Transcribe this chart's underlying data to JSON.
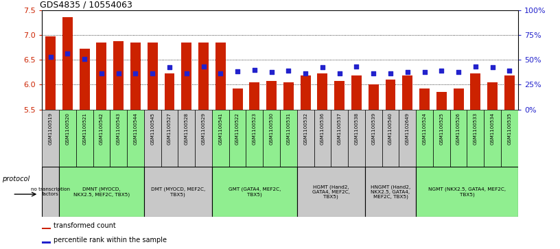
{
  "title": "GDS4835 / 10554063",
  "samples": [
    "GSM1100519",
    "GSM1100520",
    "GSM1100521",
    "GSM1100542",
    "GSM1100543",
    "GSM1100544",
    "GSM1100545",
    "GSM1100527",
    "GSM1100528",
    "GSM1100529",
    "GSM1100541",
    "GSM1100522",
    "GSM1100523",
    "GSM1100530",
    "GSM1100531",
    "GSM1100532",
    "GSM1100536",
    "GSM1100537",
    "GSM1100538",
    "GSM1100539",
    "GSM1100540",
    "GSM1102649",
    "GSM1100524",
    "GSM1100525",
    "GSM1100526",
    "GSM1100533",
    "GSM1100534",
    "GSM1100535"
  ],
  "bar_values": [
    6.97,
    7.36,
    6.72,
    6.85,
    6.87,
    6.85,
    6.85,
    6.22,
    6.85,
    6.85,
    6.85,
    5.92,
    6.05,
    6.08,
    6.05,
    6.18,
    6.22,
    6.08,
    6.18,
    6.0,
    6.1,
    6.18,
    5.93,
    5.85,
    5.92,
    6.22,
    6.05,
    6.18
  ],
  "percentile_values": [
    6.55,
    6.62,
    6.52,
    6.22,
    6.22,
    6.22,
    6.22,
    6.35,
    6.22,
    6.37,
    6.22,
    6.27,
    6.3,
    6.25,
    6.28,
    6.22,
    6.35,
    6.22,
    6.37,
    6.22,
    6.22,
    6.25,
    6.25,
    6.28,
    6.25,
    6.37,
    6.35,
    6.28
  ],
  "ylim": [
    5.5,
    7.5
  ],
  "yticks_left": [
    5.5,
    6.0,
    6.5,
    7.0,
    7.5
  ],
  "yticks_right_pct": [
    0,
    25,
    50,
    75,
    100
  ],
  "bar_color": "#CC2200",
  "dot_color": "#2222CC",
  "groups": [
    {
      "label": "no transcription\nfactors",
      "start": 0,
      "end": 1,
      "color": "#C8C8C8"
    },
    {
      "label": "DMNT (MYOCD,\nNKX2.5, MEF2C, TBX5)",
      "start": 1,
      "end": 6,
      "color": "#90EE90"
    },
    {
      "label": "DMT (MYOCD, MEF2C,\nTBX5)",
      "start": 6,
      "end": 10,
      "color": "#C8C8C8"
    },
    {
      "label": "GMT (GATA4, MEF2C,\nTBX5)",
      "start": 10,
      "end": 15,
      "color": "#90EE90"
    },
    {
      "label": "HGMT (Hand2,\nGATA4, MEF2C,\nTBX5)",
      "start": 15,
      "end": 19,
      "color": "#C8C8C8"
    },
    {
      "label": "HNGMT (Hand2,\nNKX2.5, GATA4,\nMEF2C, TBX5)",
      "start": 19,
      "end": 22,
      "color": "#C8C8C8"
    },
    {
      "label": "NGMT (NKX2.5, GATA4, MEF2C,\nTBX5)",
      "start": 22,
      "end": 28,
      "color": "#90EE90"
    }
  ],
  "tick_cell_color": "#D0D0D0",
  "legend_items": [
    {
      "label": "transformed count",
      "color": "#CC2200"
    },
    {
      "label": "percentile rank within the sample",
      "color": "#2222CC"
    }
  ]
}
